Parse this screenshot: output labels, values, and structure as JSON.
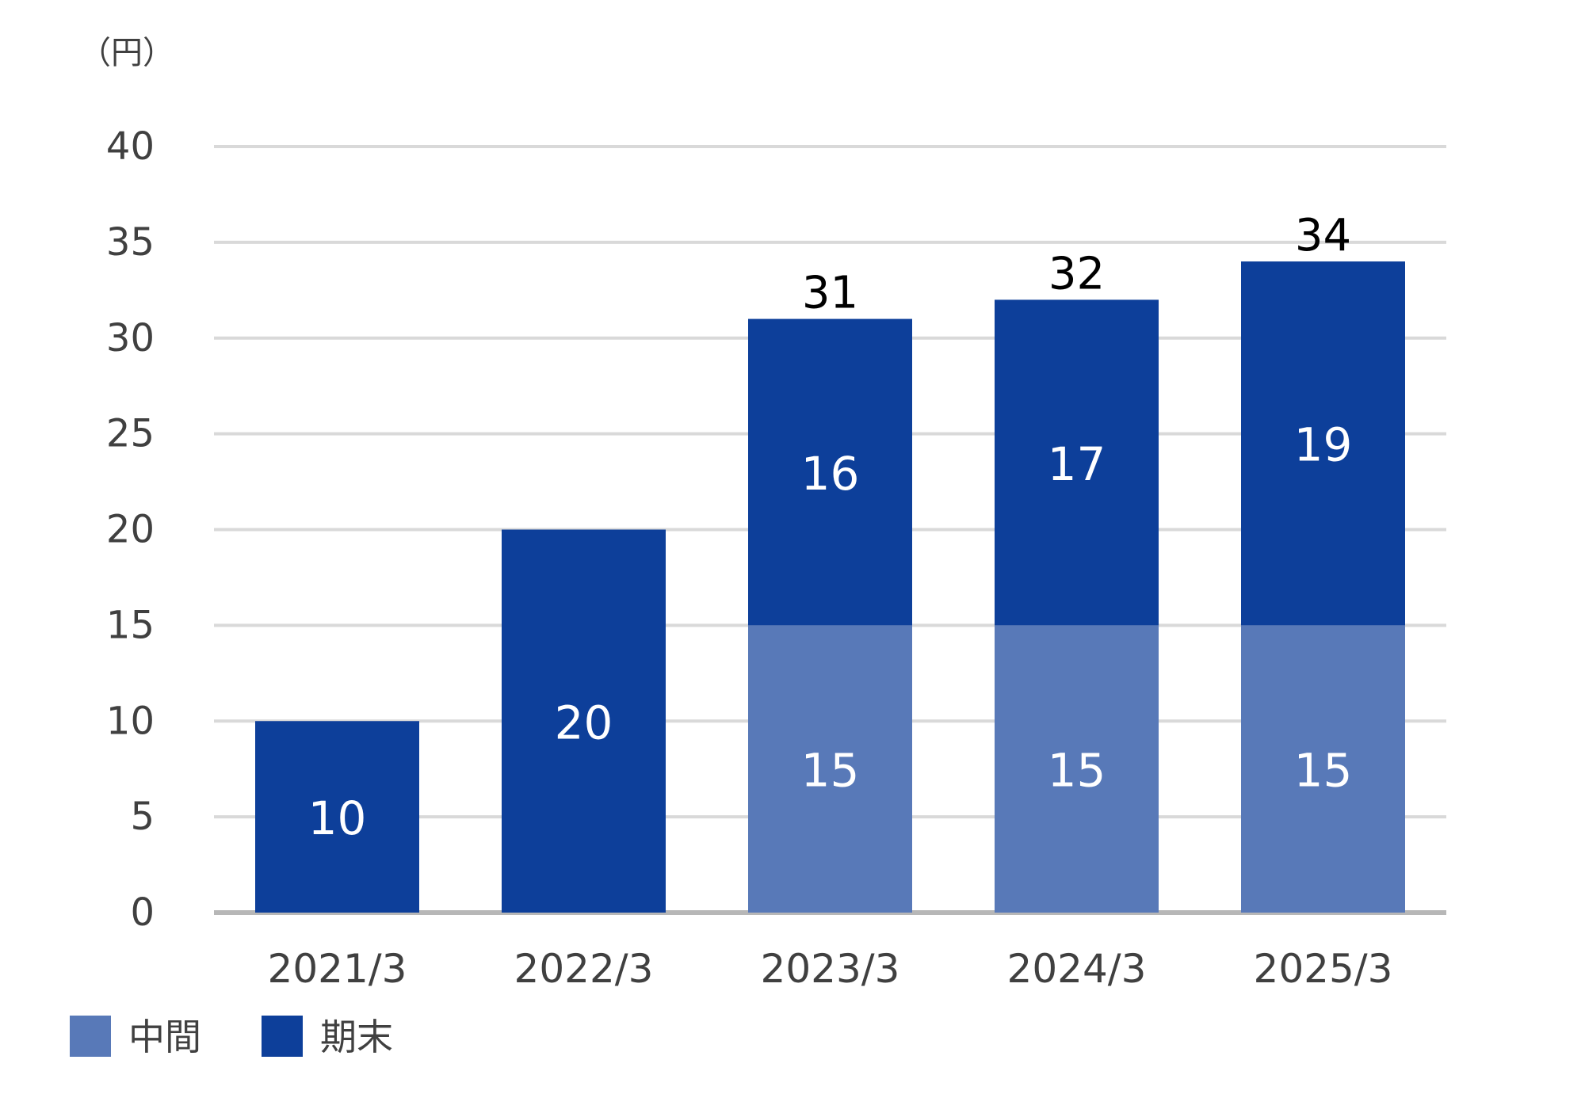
{
  "chart_data": {
    "type": "bar",
    "stacked": true,
    "unit_label": "（円）",
    "categories": [
      "2021/3",
      "2022/3",
      "2023/3",
      "2024/3",
      "2025/3"
    ],
    "series": [
      {
        "name": "中間",
        "color": "#5879b8",
        "values": [
          0,
          0,
          15,
          15,
          15
        ]
      },
      {
        "name": "期末",
        "color": "#0d3f9a",
        "values": [
          10,
          20,
          16,
          17,
          19
        ]
      }
    ],
    "totals": [
      null,
      null,
      31,
      32,
      34
    ],
    "ylim": [
      0,
      40
    ],
    "yticks": [
      0,
      5,
      10,
      15,
      20,
      25,
      30,
      35,
      40
    ],
    "grid": true,
    "legend_position": "bottom-left"
  }
}
